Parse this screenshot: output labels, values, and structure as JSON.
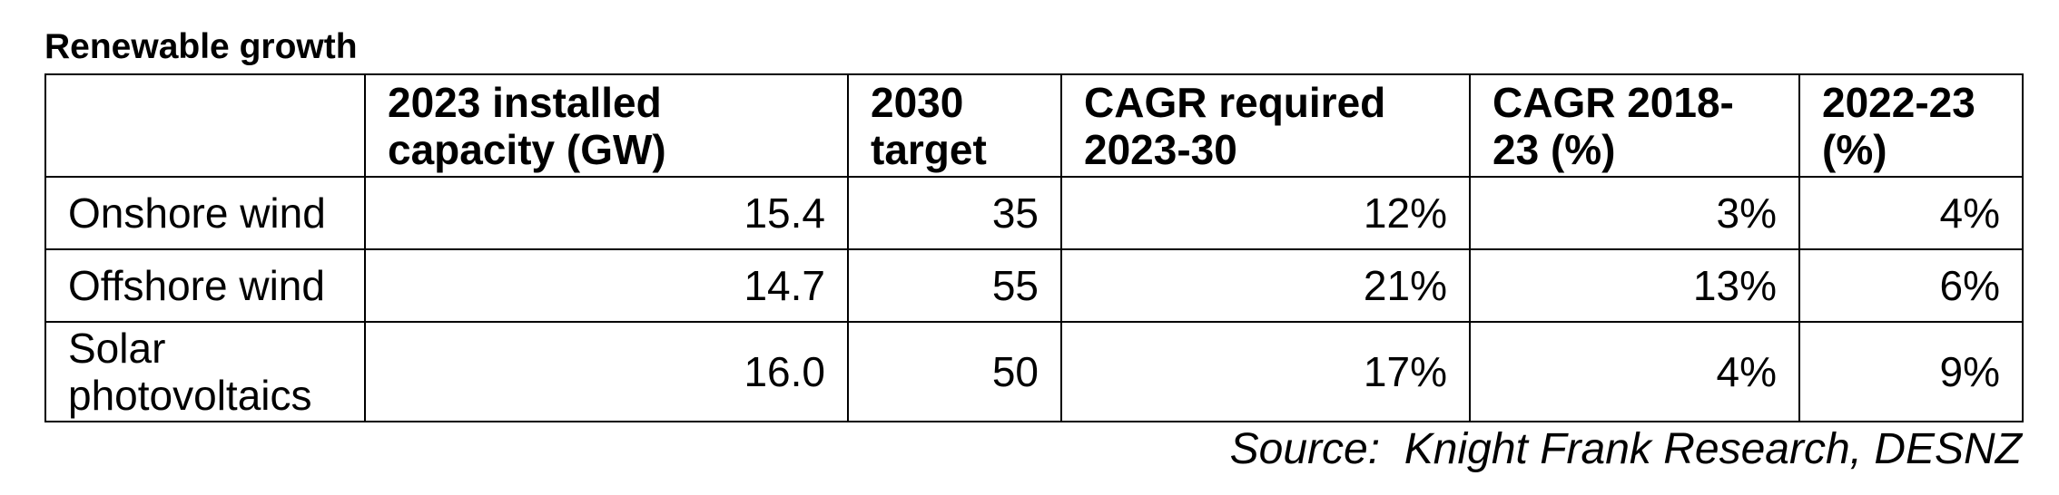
{
  "title": "Renewable growth",
  "table": {
    "header": [
      "2023 installed capacity (GW)",
      "2030 target",
      "CAGR required 2023-30",
      "CAGR 2018-23 (%)",
      "2022-23 (%)"
    ],
    "rows": [
      [
        "Onshore wind",
        "15.4",
        "35",
        "12%",
        "3%",
        "4%"
      ],
      [
        "Offshore wind",
        "14.7",
        "55",
        "21%",
        "13%",
        "6%"
      ],
      [
        "Solar photovoltaics",
        "16.0",
        "50",
        "17%",
        "4%",
        "9%"
      ]
    ]
  },
  "source": "Source:  Knight Frank Research, DESNZ"
}
